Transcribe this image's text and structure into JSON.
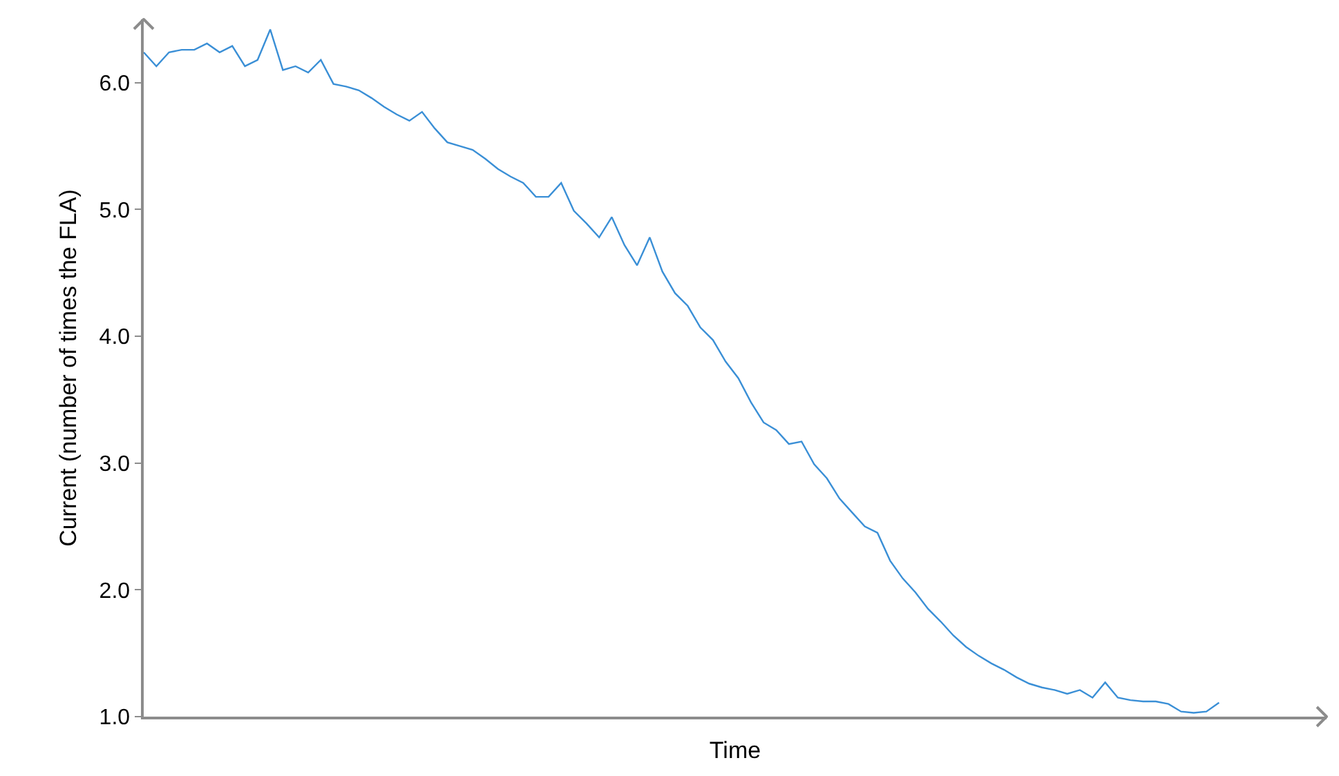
{
  "chart_data": {
    "type": "line",
    "xlabel": "Time",
    "ylabel": "Current (number of times the FLA)",
    "categories": [
      null,
      null,
      null,
      null,
      null,
      null,
      null,
      null,
      null,
      null,
      null,
      null,
      null,
      null,
      null,
      null,
      null,
      null,
      null,
      null,
      null,
      null,
      null,
      null,
      null,
      null,
      null,
      null,
      null,
      null,
      null,
      null,
      null,
      null,
      null,
      null,
      null,
      null,
      null,
      null,
      null,
      null,
      null,
      null,
      null,
      null,
      null,
      null,
      null,
      null,
      null,
      null,
      null,
      null,
      null,
      null,
      null,
      null,
      null,
      null,
      null,
      null,
      null,
      null,
      null,
      null,
      null,
      null,
      null,
      null,
      null,
      null,
      null,
      null,
      null,
      null,
      null,
      null,
      null,
      null,
      null,
      null,
      null,
      null,
      null,
      null
    ],
    "series": [
      {
        "color": "#3a8fd6",
        "values": [
          6.24,
          6.13,
          6.24,
          6.26,
          6.26,
          6.31,
          6.24,
          6.29,
          6.13,
          6.18,
          6.42,
          6.1,
          6.13,
          6.08,
          6.18,
          5.99,
          5.97,
          5.94,
          5.88,
          5.81,
          5.75,
          5.7,
          5.77,
          5.64,
          5.53,
          5.5,
          5.47,
          5.4,
          5.32,
          5.26,
          5.21,
          5.1,
          5.1,
          5.21,
          4.99,
          4.89,
          4.78,
          4.94,
          4.72,
          4.56,
          4.78,
          4.51,
          4.34,
          4.24,
          4.07,
          3.97,
          3.8,
          3.67,
          3.48,
          3.32,
          3.26,
          3.15,
          3.17,
          2.99,
          2.88,
          2.72,
          2.61,
          2.5,
          2.45,
          2.23,
          2.09,
          1.98,
          1.85,
          1.75,
          1.64,
          1.55,
          1.48,
          1.42,
          1.37,
          1.31,
          1.26,
          1.23,
          1.21,
          1.18,
          1.21,
          1.15,
          1.27,
          1.15,
          1.13,
          1.12,
          1.12,
          1.1,
          1.04,
          1.03,
          1.04,
          1.11
        ]
      }
    ],
    "ylim": [
      1,
      6.5
    ],
    "yticks": [
      {
        "value": 1,
        "label": "1.0"
      },
      {
        "value": 2,
        "label": "2.0"
      },
      {
        "value": 3,
        "label": "3.0"
      },
      {
        "value": 4,
        "label": "4.0"
      },
      {
        "value": 5,
        "label": "5.0"
      },
      {
        "value": 6,
        "label": "6.0"
      }
    ],
    "grid": false,
    "marker": "none",
    "line_style": "solid"
  }
}
